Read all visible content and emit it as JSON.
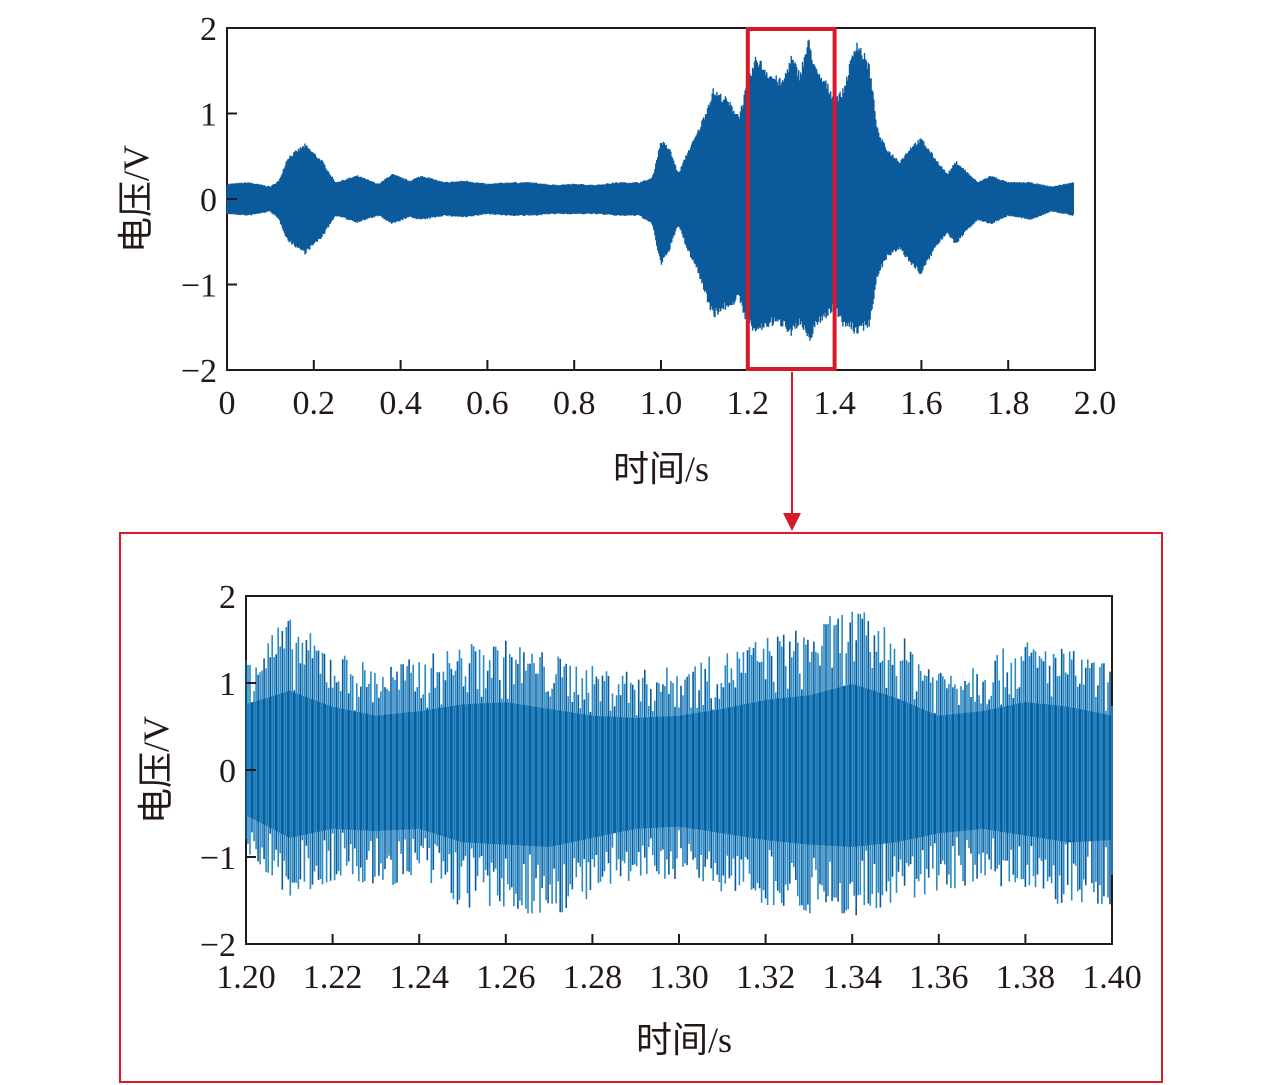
{
  "colors": {
    "signal": "#0b5a9c",
    "signal_light": "#2a8bc4",
    "highlight": "#d7192a",
    "axis": "#231815"
  },
  "chart_data": [
    {
      "type": "area",
      "title": "",
      "xlabel": "时间/s",
      "ylabel": "电压/V",
      "xlim": [
        0,
        2.0
      ],
      "ylim": [
        -2,
        2
      ],
      "xticks": [
        {
          "value": 0,
          "label": "0"
        },
        {
          "value": 0.2,
          "label": "0.2"
        },
        {
          "value": 0.4,
          "label": "0.4"
        },
        {
          "value": 0.6,
          "label": "0.6"
        },
        {
          "value": 0.8,
          "label": "0.8"
        },
        {
          "value": 1.0,
          "label": "1.0"
        },
        {
          "value": 1.2,
          "label": "1.2"
        },
        {
          "value": 1.4,
          "label": "1.4"
        },
        {
          "value": 1.6,
          "label": "1.6"
        },
        {
          "value": 1.8,
          "label": "1.8"
        },
        {
          "value": 2.0,
          "label": "2.0"
        }
      ],
      "yticks": [
        {
          "value": 2,
          "label": "2"
        },
        {
          "value": 1,
          "label": "1"
        },
        {
          "value": 0,
          "label": "0"
        },
        {
          "value": -1,
          "label": "−1"
        },
        {
          "value": -2,
          "label": "−2"
        }
      ],
      "highlight_range": [
        1.2,
        1.4
      ],
      "series": [
        {
          "upper": [
            [
              0,
              0.18
            ],
            [
              0.05,
              0.2
            ],
            [
              0.1,
              0.15
            ],
            [
              0.12,
              0.22
            ],
            [
              0.14,
              0.5
            ],
            [
              0.18,
              0.65
            ],
            [
              0.22,
              0.45
            ],
            [
              0.25,
              0.2
            ],
            [
              0.3,
              0.28
            ],
            [
              0.35,
              0.18
            ],
            [
              0.38,
              0.3
            ],
            [
              0.42,
              0.22
            ],
            [
              0.45,
              0.28
            ],
            [
              0.5,
              0.2
            ],
            [
              0.55,
              0.22
            ],
            [
              0.6,
              0.18
            ],
            [
              0.65,
              0.2
            ],
            [
              0.7,
              0.2
            ],
            [
              0.75,
              0.17
            ],
            [
              0.8,
              0.18
            ],
            [
              0.85,
              0.17
            ],
            [
              0.9,
              0.2
            ],
            [
              0.95,
              0.2
            ],
            [
              0.98,
              0.25
            ],
            [
              1.0,
              0.7
            ],
            [
              1.02,
              0.6
            ],
            [
              1.04,
              0.3
            ],
            [
              1.06,
              0.55
            ],
            [
              1.08,
              0.75
            ],
            [
              1.1,
              1.0
            ],
            [
              1.12,
              1.3
            ],
            [
              1.15,
              1.2
            ],
            [
              1.18,
              1.0
            ],
            [
              1.2,
              1.4
            ],
            [
              1.22,
              1.7
            ],
            [
              1.25,
              1.5
            ],
            [
              1.28,
              1.4
            ],
            [
              1.3,
              1.7
            ],
            [
              1.32,
              1.5
            ],
            [
              1.34,
              1.9
            ],
            [
              1.36,
              1.5
            ],
            [
              1.38,
              1.4
            ],
            [
              1.4,
              1.2
            ],
            [
              1.42,
              1.3
            ],
            [
              1.45,
              1.9
            ],
            [
              1.48,
              1.6
            ],
            [
              1.5,
              0.8
            ],
            [
              1.52,
              0.6
            ],
            [
              1.55,
              0.45
            ],
            [
              1.58,
              0.65
            ],
            [
              1.6,
              0.72
            ],
            [
              1.63,
              0.5
            ],
            [
              1.66,
              0.3
            ],
            [
              1.68,
              0.45
            ],
            [
              1.7,
              0.35
            ],
            [
              1.73,
              0.2
            ],
            [
              1.76,
              0.28
            ],
            [
              1.8,
              0.2
            ],
            [
              1.85,
              0.2
            ],
            [
              1.9,
              0.15
            ],
            [
              1.95,
              0.2
            ]
          ],
          "lower": [
            [
              0,
              -0.18
            ],
            [
              0.05,
              -0.2
            ],
            [
              0.1,
              -0.15
            ],
            [
              0.12,
              -0.25
            ],
            [
              0.14,
              -0.5
            ],
            [
              0.18,
              -0.65
            ],
            [
              0.22,
              -0.45
            ],
            [
              0.25,
              -0.2
            ],
            [
              0.3,
              -0.28
            ],
            [
              0.35,
              -0.2
            ],
            [
              0.38,
              -0.3
            ],
            [
              0.42,
              -0.22
            ],
            [
              0.45,
              -0.25
            ],
            [
              0.5,
              -0.2
            ],
            [
              0.55,
              -0.22
            ],
            [
              0.6,
              -0.18
            ],
            [
              0.65,
              -0.2
            ],
            [
              0.7,
              -0.2
            ],
            [
              0.75,
              -0.18
            ],
            [
              0.8,
              -0.18
            ],
            [
              0.85,
              -0.18
            ],
            [
              0.9,
              -0.2
            ],
            [
              0.95,
              -0.2
            ],
            [
              0.98,
              -0.3
            ],
            [
              1.0,
              -0.8
            ],
            [
              1.02,
              -0.6
            ],
            [
              1.04,
              -0.3
            ],
            [
              1.06,
              -0.6
            ],
            [
              1.08,
              -0.8
            ],
            [
              1.1,
              -1.1
            ],
            [
              1.12,
              -1.4
            ],
            [
              1.15,
              -1.3
            ],
            [
              1.18,
              -1.2
            ],
            [
              1.2,
              -1.5
            ],
            [
              1.22,
              -1.6
            ],
            [
              1.25,
              -1.5
            ],
            [
              1.28,
              -1.5
            ],
            [
              1.3,
              -1.6
            ],
            [
              1.32,
              -1.5
            ],
            [
              1.34,
              -1.7
            ],
            [
              1.36,
              -1.5
            ],
            [
              1.38,
              -1.4
            ],
            [
              1.4,
              -1.3
            ],
            [
              1.42,
              -1.5
            ],
            [
              1.45,
              -1.6
            ],
            [
              1.48,
              -1.5
            ],
            [
              1.5,
              -0.9
            ],
            [
              1.52,
              -0.7
            ],
            [
              1.55,
              -0.6
            ],
            [
              1.58,
              -0.8
            ],
            [
              1.6,
              -0.9
            ],
            [
              1.63,
              -0.6
            ],
            [
              1.66,
              -0.4
            ],
            [
              1.68,
              -0.55
            ],
            [
              1.7,
              -0.4
            ],
            [
              1.73,
              -0.25
            ],
            [
              1.76,
              -0.3
            ],
            [
              1.8,
              -0.2
            ],
            [
              1.85,
              -0.25
            ],
            [
              1.9,
              -0.15
            ],
            [
              1.95,
              -0.2
            ]
          ]
        }
      ]
    },
    {
      "type": "line",
      "title": "",
      "xlabel": "时间/s",
      "ylabel": "电压/V",
      "xlim": [
        1.2,
        1.4
      ],
      "ylim": [
        -2,
        2
      ],
      "xticks": [
        {
          "value": 1.2,
          "label": "1.20"
        },
        {
          "value": 1.22,
          "label": "1.22"
        },
        {
          "value": 1.24,
          "label": "1.24"
        },
        {
          "value": 1.26,
          "label": "1.26"
        },
        {
          "value": 1.28,
          "label": "1.28"
        },
        {
          "value": 1.3,
          "label": "1.30"
        },
        {
          "value": 1.32,
          "label": "1.32"
        },
        {
          "value": 1.34,
          "label": "1.34"
        },
        {
          "value": 1.36,
          "label": "1.36"
        },
        {
          "value": 1.38,
          "label": "1.38"
        },
        {
          "value": 1.4,
          "label": "1.40"
        }
      ],
      "yticks": [
        {
          "value": 2,
          "label": "2"
        },
        {
          "value": 1,
          "label": "1"
        },
        {
          "value": 0,
          "label": "0"
        },
        {
          "value": -1,
          "label": "−1"
        },
        {
          "value": -2,
          "label": "−2"
        }
      ],
      "series": [
        {
          "upper": [
            [
              1.2,
              1.45
            ],
            [
              1.21,
              1.75
            ],
            [
              1.22,
              1.4
            ],
            [
              1.23,
              1.2
            ],
            [
              1.24,
              1.3
            ],
            [
              1.25,
              1.45
            ],
            [
              1.26,
              1.5
            ],
            [
              1.27,
              1.35
            ],
            [
              1.28,
              1.2
            ],
            [
              1.29,
              1.15
            ],
            [
              1.3,
              1.2
            ],
            [
              1.31,
              1.35
            ],
            [
              1.32,
              1.55
            ],
            [
              1.33,
              1.65
            ],
            [
              1.34,
              1.9
            ],
            [
              1.35,
              1.6
            ],
            [
              1.36,
              1.2
            ],
            [
              1.37,
              1.3
            ],
            [
              1.38,
              1.5
            ],
            [
              1.39,
              1.4
            ],
            [
              1.4,
              1.2
            ]
          ],
          "lower": [
            [
              1.2,
              -1.0
            ],
            [
              1.21,
              -1.5
            ],
            [
              1.22,
              -1.3
            ],
            [
              1.23,
              -1.35
            ],
            [
              1.24,
              -1.3
            ],
            [
              1.25,
              -1.6
            ],
            [
              1.26,
              -1.65
            ],
            [
              1.27,
              -1.7
            ],
            [
              1.28,
              -1.5
            ],
            [
              1.29,
              -1.3
            ],
            [
              1.3,
              -1.25
            ],
            [
              1.31,
              -1.4
            ],
            [
              1.32,
              -1.55
            ],
            [
              1.33,
              -1.65
            ],
            [
              1.34,
              -1.7
            ],
            [
              1.35,
              -1.6
            ],
            [
              1.36,
              -1.4
            ],
            [
              1.37,
              -1.3
            ],
            [
              1.38,
              -1.45
            ],
            [
              1.39,
              -1.6
            ],
            [
              1.4,
              -1.55
            ]
          ]
        }
      ]
    }
  ]
}
